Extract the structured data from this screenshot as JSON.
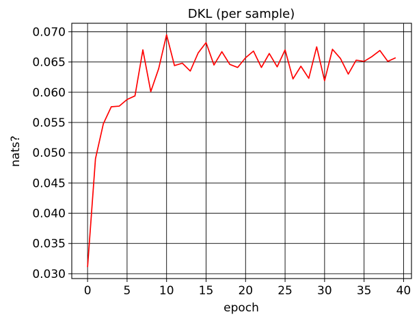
{
  "chart_data": {
    "type": "line",
    "title": "DKL (per sample)",
    "xlabel": "epoch",
    "ylabel": "nats?",
    "xlim": [
      -2,
      41
    ],
    "ylim": [
      0.0292,
      0.0714
    ],
    "xticks": [
      0,
      5,
      10,
      15,
      20,
      25,
      30,
      35,
      40
    ],
    "yticks": [
      0.03,
      0.035,
      0.04,
      0.045,
      0.05,
      0.055,
      0.06,
      0.065,
      0.07
    ],
    "ytick_labels": [
      "0.030",
      "0.035",
      "0.040",
      "0.045",
      "0.050",
      "0.055",
      "0.060",
      "0.065",
      "0.070"
    ],
    "grid": true,
    "colors": {
      "line": "#ff0000",
      "grid": "#000000",
      "axes": "#000000"
    },
    "series": [
      {
        "x": [
          0,
          1,
          2,
          3,
          4,
          5,
          6,
          7,
          8,
          9,
          10,
          11,
          12,
          13,
          14,
          15,
          16,
          17,
          18,
          19,
          20,
          21,
          22,
          23,
          24,
          25,
          26,
          27,
          28,
          29,
          30,
          31,
          32,
          33,
          34,
          35,
          36,
          37,
          38,
          39
        ],
        "values": [
          0.0311,
          0.049,
          0.0548,
          0.0576,
          0.0577,
          0.0588,
          0.0594,
          0.067,
          0.0601,
          0.0639,
          0.0695,
          0.0644,
          0.0648,
          0.0635,
          0.0665,
          0.0682,
          0.0645,
          0.0667,
          0.0646,
          0.0641,
          0.0657,
          0.0668,
          0.0641,
          0.0664,
          0.0642,
          0.067,
          0.0622,
          0.0643,
          0.0623,
          0.0675,
          0.0619,
          0.0671,
          0.0656,
          0.063,
          0.0653,
          0.0651,
          0.0659,
          0.0669,
          0.0651,
          0.0657
        ]
      }
    ]
  }
}
